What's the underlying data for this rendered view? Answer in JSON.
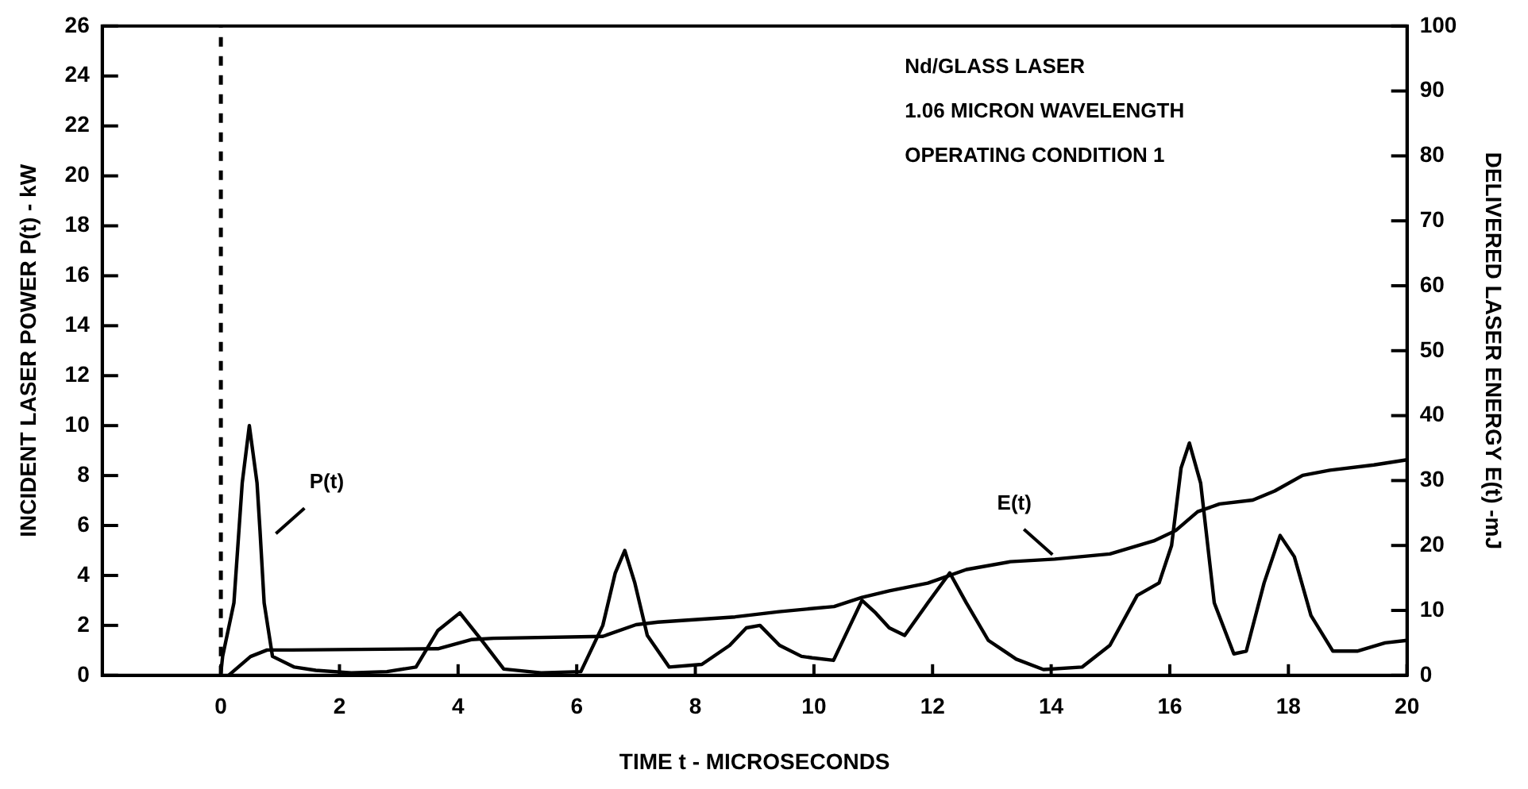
{
  "chart_data": {
    "type": "line",
    "xlabel": "TIME t - MICROSECONDS",
    "ylabel": "INCIDENT LASER POWER P(t) - kW",
    "y2label": "DELIVERED LASER ENERGY E(t) -mJ",
    "xlim": [
      -2,
      20
    ],
    "xticks": [
      0,
      2,
      4,
      6,
      8,
      10,
      12,
      14,
      16,
      18,
      20
    ],
    "ylim": [
      0,
      26
    ],
    "yticks": [
      0,
      2,
      4,
      6,
      8,
      10,
      12,
      14,
      16,
      18,
      20,
      22,
      24,
      26
    ],
    "y2lim": [
      0,
      100
    ],
    "y2ticks": [
      0,
      10,
      20,
      30,
      40,
      50,
      60,
      70,
      80,
      90,
      100
    ],
    "grid": false,
    "legend": false,
    "marker": "none",
    "line_style": "solid",
    "series": [
      {
        "color": "#000000",
        "axis": "y",
        "x": [
          0,
          0.03,
          0.22,
          0.36,
          0.48,
          0.61,
          0.66,
          0.73,
          0.87,
          1.24,
          1.6,
          2.2,
          2.8,
          3.29,
          3.66,
          4.03,
          4.4,
          4.77,
          5.4,
          6.07,
          6.44,
          6.65,
          6.81,
          6.98,
          7.19,
          7.56,
          8.11,
          8.58,
          8.86,
          9.09,
          9.42,
          9.79,
          9.97,
          10.33,
          10.81,
          11.04,
          11.27,
          11.53,
          11.92,
          12.29,
          12.57,
          12.94,
          13.41,
          13.87,
          14.52,
          14.99,
          15.45,
          15.82,
          16.03,
          16.19,
          16.33,
          16.52,
          16.75,
          17.08,
          17.29,
          17.59,
          17.86,
          18.1,
          18.38,
          18.75,
          19.16,
          19.63,
          20
        ],
        "values": [
          0.1,
          0.76,
          2.9,
          7.7,
          10,
          7.7,
          5.8,
          2.9,
          0.76,
          0.33,
          0.2,
          0.1,
          0.15,
          0.33,
          1.8,
          2.5,
          1.4,
          0.25,
          0.1,
          0.15,
          2,
          4.1,
          5,
          3.7,
          1.6,
          0.33,
          0.44,
          1.2,
          1.9,
          2,
          1.2,
          0.76,
          0.7,
          0.6,
          3,
          2.5,
          1.9,
          1.6,
          2.9,
          4.1,
          2.9,
          1.4,
          0.65,
          0.23,
          0.33,
          1.2,
          3.2,
          3.7,
          5.2,
          8.3,
          9.3,
          7.7,
          2.9,
          0.86,
          0.97,
          3.7,
          5.6,
          4.75,
          2.4,
          0.97,
          0.97,
          1.3,
          1.4
        ]
      },
      {
        "color": "#000000",
        "axis": "y2",
        "x": [
          0.13,
          0.5,
          0.78,
          1.2,
          3.66,
          4.22,
          4.6,
          6.44,
          7,
          7.37,
          8.67,
          9.04,
          9.41,
          10.34,
          10.81,
          11.27,
          11.92,
          12.57,
          13.31,
          14.06,
          14.99,
          15.73,
          16.1,
          16.47,
          16.84,
          17.4,
          17.77,
          18.24,
          18.7,
          19.44,
          20
        ],
        "values": [
          0,
          2.9,
          3.9,
          3.9,
          4.1,
          5.5,
          5.7,
          6,
          7.8,
          8.2,
          9,
          9.4,
          9.8,
          10.6,
          12,
          13,
          14.2,
          16.3,
          17.5,
          17.9,
          18.7,
          20.7,
          22.3,
          25.2,
          26.4,
          27,
          28.4,
          30.8,
          31.6,
          32.4,
          33.2
        ]
      }
    ],
    "ref_lines": [
      {
        "axis": "x",
        "value": 0,
        "line_style": "dashed",
        "color": "#000000"
      }
    ],
    "annotations": [
      {
        "text": "P(t)",
        "x": 0.66,
        "y": 5.8
      },
      {
        "text": "E(t)",
        "x": 14.29,
        "y": 4.96
      },
      "Nd/GLASS LASER",
      "1.06 MICRON WAVELENGTH",
      "OPERATING CONDITION 1"
    ]
  }
}
